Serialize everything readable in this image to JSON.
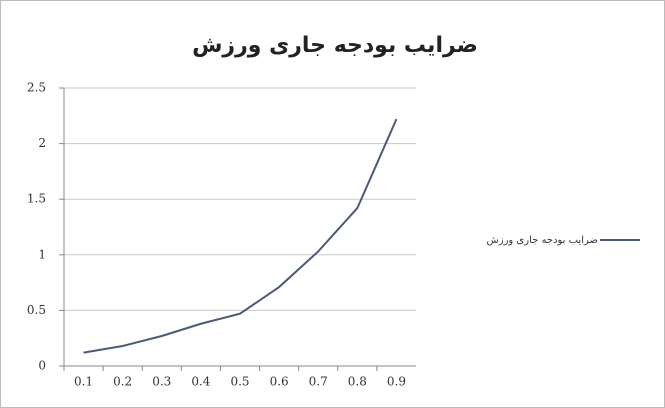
{
  "chart_data": {
    "type": "line",
    "title": "ضرایب بودجه جاری ورزش",
    "categories": [
      "0.1",
      "0.2",
      "0.3",
      "0.4",
      "0.5",
      "0.6",
      "0.7",
      "0.8",
      "0.9"
    ],
    "series": [
      {
        "name": "ضرایب بودجه جاری ورزش",
        "color": "#4a5a78",
        "values": [
          0.12,
          0.18,
          0.27,
          0.38,
          0.47,
          0.71,
          1.03,
          1.42,
          2.22
        ]
      }
    ],
    "ylim": [
      0,
      2.5
    ],
    "yticks": [
      0,
      0.5,
      1,
      1.5,
      2,
      2.5
    ],
    "grid": true,
    "legend": "right"
  }
}
